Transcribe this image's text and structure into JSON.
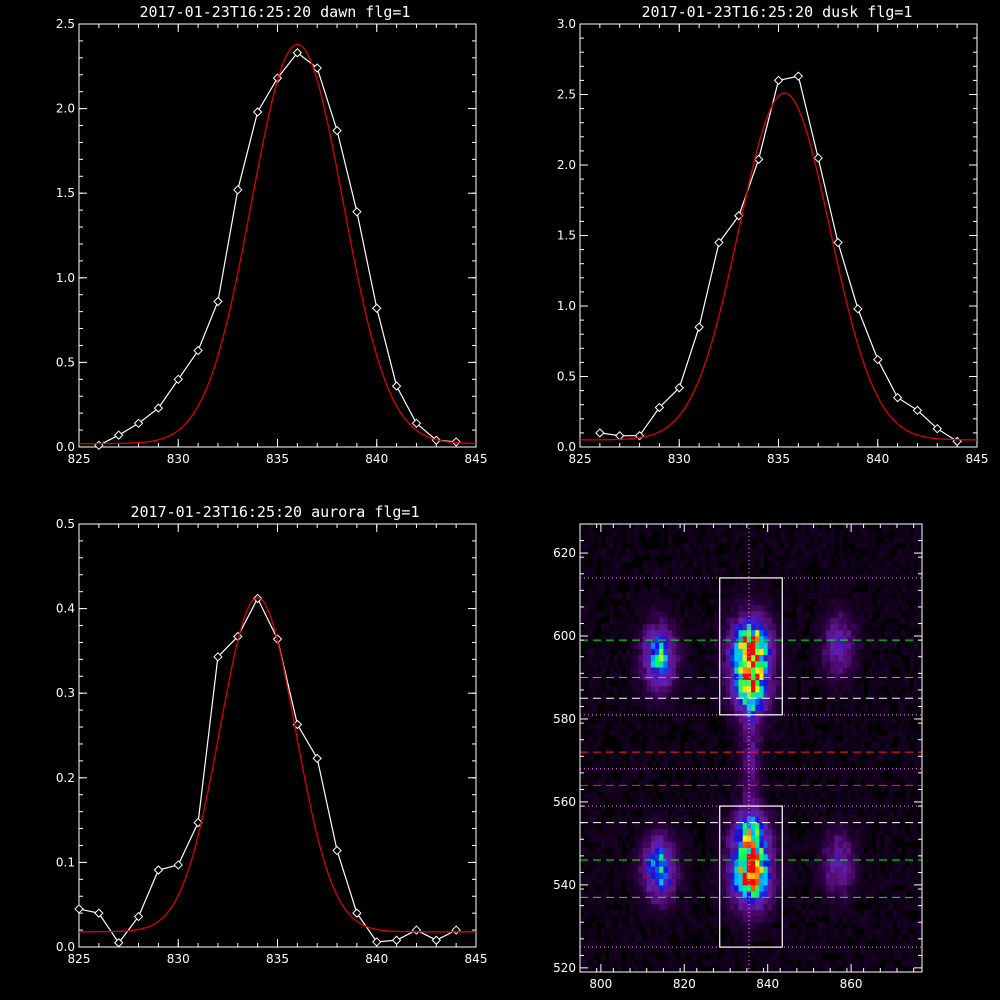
{
  "chart_data": [
    {
      "type": "line",
      "title": "2017-01-23T16:25:20 dawn flg=1",
      "xlim": [
        825,
        845
      ],
      "ylim": [
        0,
        2.5
      ],
      "xticks": [
        "825",
        "830",
        "835",
        "840",
        "845"
      ],
      "xtick_values": [
        825,
        830,
        835,
        840,
        845
      ],
      "yticks": [
        "0.0",
        "0.5",
        "1.0",
        "1.5",
        "2.0",
        "2.5"
      ],
      "ytick_values": [
        0,
        0.5,
        1.0,
        1.5,
        2.0,
        2.5
      ],
      "series": [
        {
          "color": "#ffffff",
          "marker": "diamond",
          "x": [
            826,
            827,
            828,
            829,
            830,
            831,
            832,
            833,
            834,
            835,
            836,
            837,
            838,
            839,
            840,
            841,
            842,
            843,
            844
          ],
          "y": [
            0.01,
            0.07,
            0.14,
            0.23,
            0.4,
            0.57,
            0.86,
            1.52,
            1.98,
            2.18,
            2.33,
            2.24,
            1.87,
            1.39,
            0.82,
            0.36,
            0.14,
            0.04,
            0.03
          ]
        },
        {
          "color": "#dd0000",
          "fit": "gaussian",
          "amplitude": 2.36,
          "center": 836.0,
          "sigma": 2.3,
          "offset": 0.02
        }
      ]
    },
    {
      "type": "line",
      "title": "2017-01-23T16:25:20 dusk flg=1",
      "xlim": [
        825,
        845
      ],
      "ylim": [
        0,
        3.0
      ],
      "xticks": [
        "825",
        "830",
        "835",
        "840",
        "845"
      ],
      "xtick_values": [
        825,
        830,
        835,
        840,
        845
      ],
      "yticks": [
        "0.0",
        "0.5",
        "1.0",
        "1.5",
        "2.0",
        "2.5",
        "3.0"
      ],
      "ytick_values": [
        0,
        0.5,
        1.0,
        1.5,
        2.0,
        2.5,
        3.0
      ],
      "series": [
        {
          "color": "#ffffff",
          "marker": "diamond",
          "x": [
            826,
            827,
            828,
            829,
            830,
            831,
            832,
            833,
            834,
            835,
            836,
            837,
            838,
            839,
            840,
            841,
            842,
            843,
            844
          ],
          "y": [
            0.1,
            0.08,
            0.08,
            0.28,
            0.42,
            0.85,
            1.45,
            1.64,
            2.04,
            2.6,
            2.63,
            2.05,
            1.45,
            0.98,
            0.62,
            0.35,
            0.26,
            0.13,
            0.04
          ]
        },
        {
          "color": "#dd0000",
          "fit": "gaussian",
          "amplitude": 2.46,
          "center": 835.3,
          "sigma": 2.3,
          "offset": 0.05
        }
      ]
    },
    {
      "type": "line",
      "title": "2017-01-23T16:25:20 aurora flg=1",
      "xlim": [
        825,
        845
      ],
      "ylim": [
        0,
        0.5
      ],
      "xticks": [
        "825",
        "830",
        "835",
        "840",
        "845"
      ],
      "xtick_values": [
        825,
        830,
        835,
        840,
        845
      ],
      "yticks": [
        "0.0",
        "0.1",
        "0.2",
        "0.3",
        "0.4",
        "0.5"
      ],
      "ytick_values": [
        0,
        0.1,
        0.2,
        0.3,
        0.4,
        0.5
      ],
      "series": [
        {
          "color": "#ffffff",
          "marker": "diamond",
          "x": [
            825,
            826,
            827,
            828,
            829,
            830,
            831,
            832,
            833,
            834,
            835,
            836,
            837,
            838,
            839,
            840,
            841,
            842,
            843,
            844
          ],
          "y": [
            0.045,
            0.04,
            0.005,
            0.036,
            0.091,
            0.097,
            0.147,
            0.343,
            0.367,
            0.412,
            0.364,
            0.263,
            0.223,
            0.114,
            0.04,
            0.006,
            0.008,
            0.02,
            0.008,
            0.02
          ]
        },
        {
          "color": "#dd0000",
          "fit": "gaussian",
          "amplitude": 0.395,
          "center": 834.0,
          "sigma": 1.9,
          "offset": 0.018
        }
      ]
    },
    {
      "type": "heatmap",
      "title": "",
      "xlim": [
        795,
        877
      ],
      "ylim": [
        519,
        627
      ],
      "xticks": [
        "800",
        "820",
        "840",
        "860"
      ],
      "xtick_values": [
        800,
        820,
        840,
        860
      ],
      "yticks": [
        "520",
        "540",
        "560",
        "580",
        "600",
        "620"
      ],
      "ytick_values": [
        520,
        540,
        560,
        580,
        600,
        620
      ],
      "colormap": [
        "#000000",
        "#2a0040",
        "#5a1080",
        "#6020b0",
        "#1010e0",
        "#00c0ff",
        "#00ff60",
        "#ffff00",
        "#ff0000"
      ],
      "emission_sources": [
        {
          "x": 836,
          "y": 596,
          "sx": 3.2,
          "sy": 5.5,
          "amp": 1.0
        },
        {
          "x": 836,
          "y": 586,
          "sx": 3.0,
          "sy": 4.0,
          "amp": 0.55
        },
        {
          "x": 836,
          "y": 543,
          "sx": 3.2,
          "sy": 5.5,
          "amp": 0.95
        },
        {
          "x": 836,
          "y": 553,
          "sx": 3.0,
          "sy": 3.5,
          "amp": 0.5
        },
        {
          "x": 836,
          "y": 570,
          "sx": 1.6,
          "sy": 11.0,
          "amp": 0.22
        },
        {
          "x": 814,
          "y": 595,
          "sx": 2.6,
          "sy": 5.0,
          "amp": 0.62
        },
        {
          "x": 814,
          "y": 544,
          "sx": 2.6,
          "sy": 5.0,
          "amp": 0.62
        },
        {
          "x": 857,
          "y": 598,
          "sx": 2.6,
          "sy": 5.0,
          "amp": 0.32
        },
        {
          "x": 857,
          "y": 545,
          "sx": 2.6,
          "sy": 5.0,
          "amp": 0.3
        }
      ],
      "boxes": [
        {
          "color": "#ffffff",
          "x0": 828.5,
          "x1": 843.5,
          "y0": 581,
          "y1": 614
        },
        {
          "color": "#ffffff",
          "x0": 828.5,
          "x1": 843.5,
          "y0": 525,
          "y1": 559
        }
      ],
      "hlines": [
        {
          "y": 614,
          "color": "#ff88ff",
          "style": "dotted"
        },
        {
          "y": 599,
          "color": "#00ff00",
          "style": "dashed"
        },
        {
          "y": 590,
          "color": "#00ff00",
          "style": "dashed"
        },
        {
          "y": 585,
          "color": "#ffffff",
          "style": "dashed"
        },
        {
          "y": 581,
          "color": "#ff88ff",
          "style": "dotted"
        },
        {
          "y": 572,
          "color": "#ff2020",
          "style": "dashed"
        },
        {
          "y": 568,
          "color": "#ff88ff",
          "style": "dotted"
        },
        {
          "y": 564,
          "color": "#ff2020",
          "style": "dashed"
        },
        {
          "y": 559,
          "color": "#ff88ff",
          "style": "dotted"
        },
        {
          "y": 555,
          "color": "#ffffff",
          "style": "dashed"
        },
        {
          "y": 546,
          "color": "#00ff00",
          "style": "dashed"
        },
        {
          "y": 537,
          "color": "#00ff00",
          "style": "dashed"
        },
        {
          "y": 525,
          "color": "#ff88ff",
          "style": "dotted"
        }
      ],
      "vlines": [
        {
          "x": 835.5,
          "color": "#ff88ff",
          "style": "dotted"
        }
      ]
    }
  ]
}
